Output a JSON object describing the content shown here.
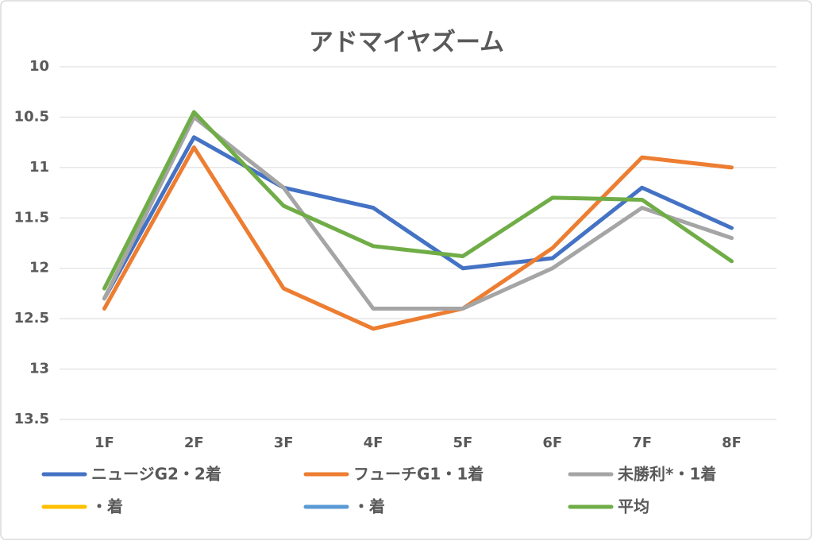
{
  "chart_data": {
    "type": "line",
    "title": "アドマイヤズーム",
    "categories": [
      "1F",
      "2F",
      "3F",
      "4F",
      "5F",
      "6F",
      "7F",
      "8F"
    ],
    "series": [
      {
        "name": "ニュージG2・2着",
        "color": "#4472c4",
        "values": [
          12.3,
          10.7,
          11.2,
          11.4,
          12.0,
          11.9,
          11.2,
          11.6
        ]
      },
      {
        "name": "フューチG1・1着",
        "color": "#ed7d31",
        "values": [
          12.4,
          10.8,
          12.2,
          12.6,
          12.4,
          11.8,
          10.9,
          11.0
        ]
      },
      {
        "name": "未勝利*・1着",
        "color": "#a5a5a5",
        "values": [
          12.3,
          10.5,
          11.2,
          12.4,
          12.4,
          12.0,
          11.4,
          11.7
        ]
      },
      {
        "name": "・着",
        "color": "#ffc000",
        "values": [
          null,
          null,
          null,
          null,
          null,
          null,
          null,
          null
        ]
      },
      {
        "name": "・着",
        "color": "#5b9bd5",
        "values": [
          null,
          null,
          null,
          null,
          null,
          null,
          null,
          null
        ]
      },
      {
        "name": "平均",
        "color": "#70ad47",
        "values": [
          12.2,
          10.45,
          11.38,
          11.78,
          11.88,
          11.3,
          11.32,
          11.93
        ]
      }
    ],
    "ylim": [
      10,
      13.5
    ],
    "y_inverted": true,
    "yticks": [
      10,
      10.5,
      11,
      11.5,
      12,
      12.5,
      13,
      13.5
    ],
    "grid": true,
    "legend": "bottom"
  }
}
